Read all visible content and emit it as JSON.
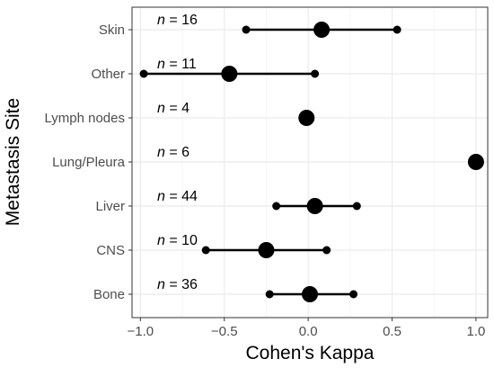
{
  "chart_data": {
    "type": "forest",
    "xlabel": "Cohen's Kappa",
    "ylabel": "Metastasis Site",
    "xlim": [
      -1.05,
      1.07
    ],
    "x_ticks": [
      -1.0,
      -0.5,
      0.0,
      0.5,
      1.0
    ],
    "x_tick_labels": [
      "−1.0",
      "−0.5",
      "0.0",
      "0.5",
      "1.0"
    ],
    "grid": true,
    "colors": {
      "mark": "#000000",
      "grid_major": "#ebebeb",
      "grid_minor": "#f5f5f5",
      "panel_border": "#333333"
    },
    "rows": [
      {
        "site": "Skin",
        "n_prefix": "n",
        "n_text": " = 16",
        "estimate": 0.08,
        "lower": -0.37,
        "upper": 0.53
      },
      {
        "site": "Other",
        "n_prefix": "n",
        "n_text": " = 11",
        "estimate": -0.47,
        "lower": -0.98,
        "upper": 0.04
      },
      {
        "site": "Lymph nodes",
        "n_prefix": "n",
        "n_text": " = 4",
        "estimate": -0.01,
        "lower": null,
        "upper": null
      },
      {
        "site": "Lung/Pleura",
        "n_prefix": "n",
        "n_text": " = 6",
        "estimate": 1.0,
        "lower": null,
        "upper": null
      },
      {
        "site": "Liver",
        "n_prefix": "n",
        "n_text": " = 44",
        "estimate": 0.04,
        "lower": -0.19,
        "upper": 0.29
      },
      {
        "site": "CNS",
        "n_prefix": "n",
        "n_text": " = 10",
        "estimate": -0.25,
        "lower": -0.61,
        "upper": 0.11
      },
      {
        "site": "Bone",
        "n_prefix": "n",
        "n_text": " = 36",
        "estimate": 0.01,
        "lower": -0.23,
        "upper": 0.27
      }
    ]
  }
}
